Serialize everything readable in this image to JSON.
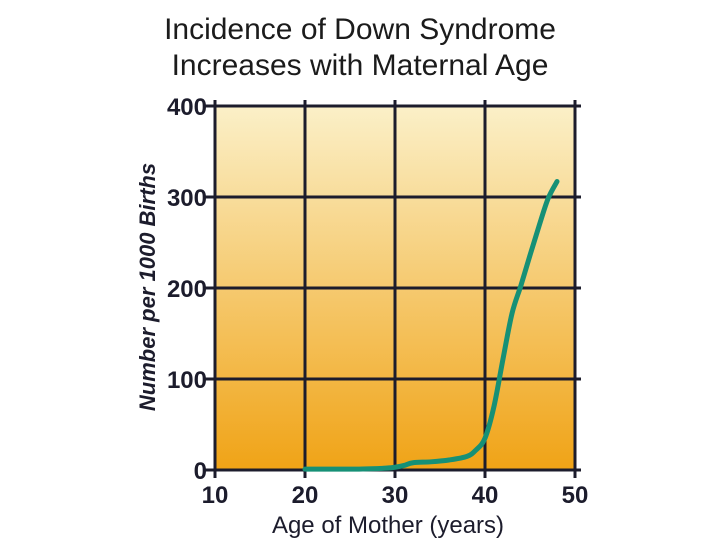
{
  "chart_data": {
    "type": "line",
    "title_lines": [
      "Incidence of Down Syndrome",
      "Increases with Maternal Age"
    ],
    "xlabel": "Age of Mother (years)",
    "ylabel": "Number per 1000 Births",
    "xlim": [
      10,
      50
    ],
    "ylim": [
      0,
      400
    ],
    "x_ticks": [
      10,
      20,
      30,
      40,
      50
    ],
    "x_tick_labels": [
      "10",
      "20",
      "30",
      "40",
      "50"
    ],
    "y_ticks": [
      0,
      100,
      200,
      300,
      400
    ],
    "y_tick_labels": [
      "0",
      "100",
      "200",
      "300",
      "400"
    ],
    "grid": true,
    "background_gradient": [
      "#fbf0c8",
      "#f0a316"
    ],
    "series": [
      {
        "color": "#169076",
        "x": [
          20,
          22,
          24,
          26,
          28,
          29,
          30,
          31,
          32,
          34,
          36,
          38,
          39,
          40,
          41,
          42,
          43,
          44,
          45,
          46,
          47,
          48
        ],
        "y": [
          1,
          1,
          1,
          1,
          1.5,
          2,
          3,
          5,
          8,
          9,
          11,
          15,
          22,
          35,
          70,
          122,
          172,
          203,
          236,
          268,
          298,
          317
        ]
      }
    ]
  }
}
